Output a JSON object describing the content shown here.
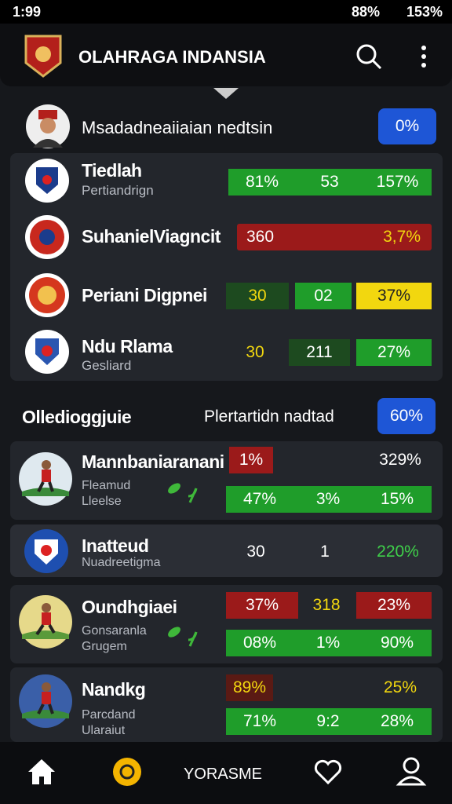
{
  "status_bar": {
    "time": "1:99",
    "battery": "88%",
    "signal": "153%"
  },
  "header": {
    "title": "OLAHRAGA INDANSIA"
  },
  "featured": {
    "name": "Msadadneaiiaian nedtsin",
    "badge": "0%"
  },
  "teams": [
    {
      "name": "Tiedlah",
      "subtitle": "Pertiandrign",
      "stats": [
        "81%",
        "53",
        "157%"
      ]
    },
    {
      "name": "SuhanielViagncit",
      "stats": [
        "360",
        "3,7%"
      ]
    },
    {
      "name": "Periani Digpnei",
      "stats": [
        "30",
        "02",
        "37%"
      ]
    },
    {
      "name": "Ndu Rlama",
      "subtitle": "Gesliard",
      "stats": [
        "30",
        "211",
        "27%"
      ]
    }
  ],
  "section": {
    "title": "Olledioggjuie",
    "subtitle": "Plertartidn nadtad",
    "badge": "60%"
  },
  "players": [
    {
      "name": "Mannbaniaranani",
      "lines": [
        "Fleamud",
        "Lleelse"
      ],
      "stats": [
        "1%",
        "329%"
      ],
      "stats2": [
        "47%",
        "3%",
        "15%"
      ]
    },
    {
      "name": "Inatteud",
      "lines": [
        "Nuadreetigma"
      ],
      "stats": [
        "30",
        "1",
        "220%"
      ]
    },
    {
      "name": "Oundhgiaei",
      "lines": [
        "Gonsaranla",
        "Grugem"
      ],
      "stats": [
        "37%",
        "318",
        "23%"
      ],
      "stats2": [
        "08%",
        "1%",
        "90%"
      ]
    },
    {
      "name": "Nandkg",
      "lines": [
        "Parcdand",
        "Ularaiut"
      ],
      "stats": [
        "89%",
        "25%"
      ],
      "stats2": [
        "71%",
        "9:2",
        "28%"
      ]
    }
  ],
  "nav": {
    "label": "YORASME"
  }
}
